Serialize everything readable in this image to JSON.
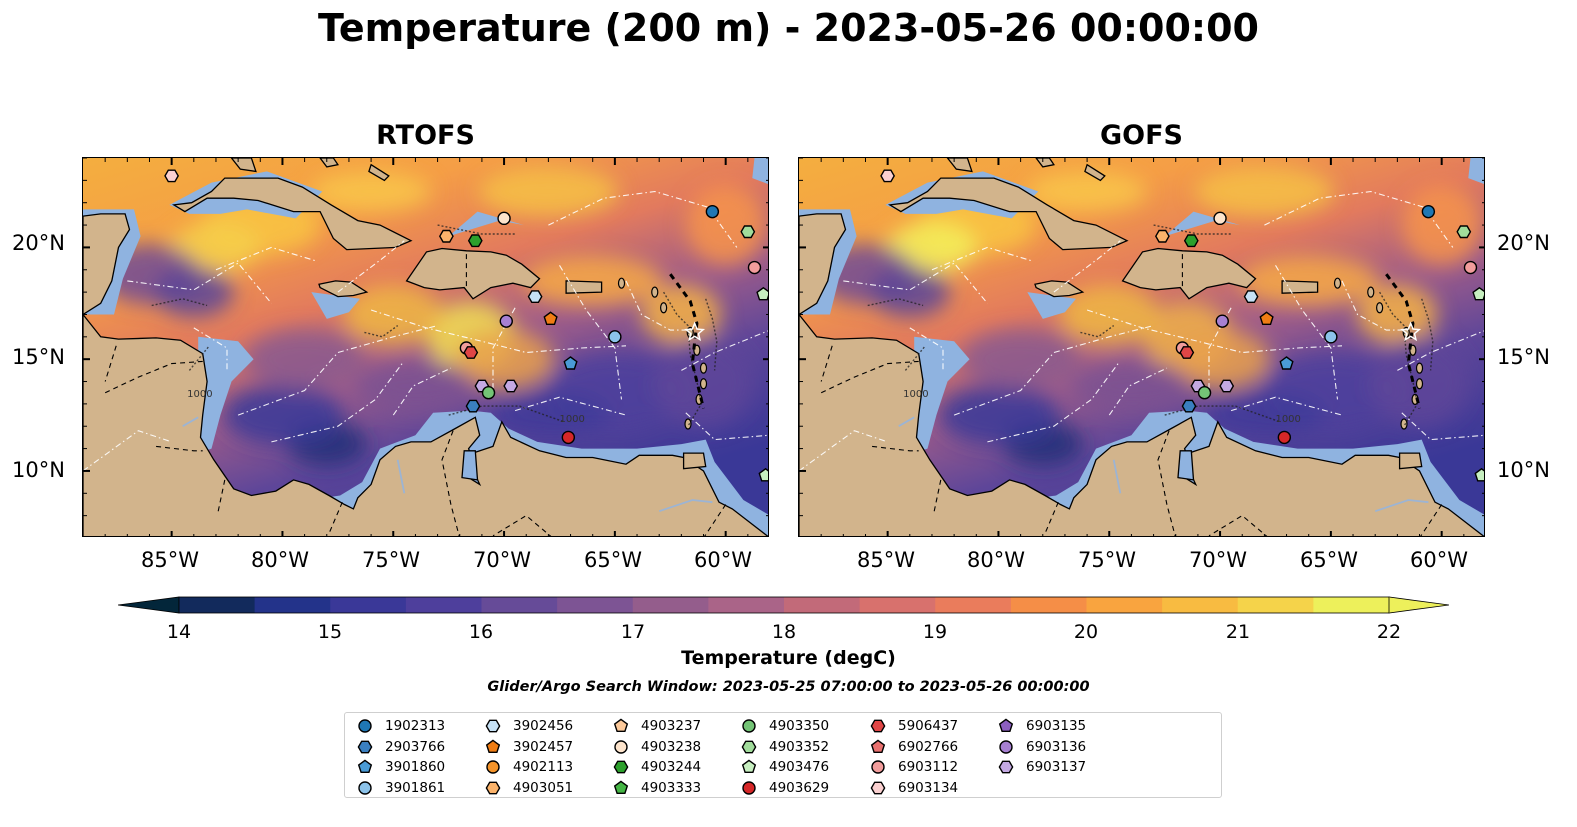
{
  "title": "Temperature (200 m) - 2023-05-26 00:00:00",
  "panels": [
    {
      "title": "RTOFS"
    },
    {
      "title": "GOFS"
    }
  ],
  "axes": {
    "lon_ticks": [
      "85°W",
      "80°W",
      "75°W",
      "70°W",
      "65°W",
      "60°W"
    ],
    "lat_ticks": [
      "20°N",
      "15°N",
      "10°N"
    ]
  },
  "contour_labels": [
    "1000",
    "1000"
  ],
  "colorbar": {
    "label": "Temperature (degC)",
    "min": 14,
    "max": 22,
    "ticks": [
      "14",
      "15",
      "16",
      "17",
      "18",
      "19",
      "20",
      "21",
      "22"
    ],
    "colormap": [
      "#03263a",
      "#122a5c",
      "#23338a",
      "#3a3898",
      "#4e3f9c",
      "#664b98",
      "#7d5494",
      "#945d8c",
      "#aa6488",
      "#c26a79",
      "#d8716d",
      "#ea7c5c",
      "#f58e47",
      "#f9a43f",
      "#f8bb41",
      "#f5d34a",
      "#edf05b"
    ]
  },
  "search_window": "Glider/Argo Search Window: 2023-05-25 07:00:00 to 2023-05-26 00:00:00",
  "legend": [
    {
      "label": "1902313",
      "marker": "circle",
      "color": "#1f77b4"
    },
    {
      "label": "2903766",
      "marker": "hexagon",
      "color": "#3a7fc0"
    },
    {
      "label": "3901860",
      "marker": "pentagon",
      "color": "#4a9bd6"
    },
    {
      "label": "3901861",
      "marker": "circle",
      "color": "#8cc3ea"
    },
    {
      "label": "3902456",
      "marker": "hexagon",
      "color": "#c6e1f5"
    },
    {
      "label": "3902457",
      "marker": "pentagon",
      "color": "#f07d14"
    },
    {
      "label": "4902113",
      "marker": "circle",
      "color": "#f5942a"
    },
    {
      "label": "4903051",
      "marker": "hexagon",
      "color": "#fbb36b"
    },
    {
      "label": "4903237",
      "marker": "pentagon",
      "color": "#fcc99a"
    },
    {
      "label": "4903238",
      "marker": "circle",
      "color": "#fde4cc"
    },
    {
      "label": "4903244",
      "marker": "hexagon",
      "color": "#2ca02c"
    },
    {
      "label": "4903333",
      "marker": "pentagon",
      "color": "#45b545"
    },
    {
      "label": "4903350",
      "marker": "circle",
      "color": "#74c476"
    },
    {
      "label": "4903352",
      "marker": "hexagon",
      "color": "#a1dc9b"
    },
    {
      "label": "4903476",
      "marker": "pentagon",
      "color": "#c7efc0"
    },
    {
      "label": "4903629",
      "marker": "circle",
      "color": "#d62728"
    },
    {
      "label": "5906437",
      "marker": "hexagon",
      "color": "#e04646"
    },
    {
      "label": "6902766",
      "marker": "pentagon",
      "color": "#e9716f"
    },
    {
      "label": "6903112",
      "marker": "circle",
      "color": "#f29d9c"
    },
    {
      "label": "6903134",
      "marker": "hexagon",
      "color": "#fad0d0"
    },
    {
      "label": "6903135",
      "marker": "pentagon",
      "color": "#8c5fc0"
    },
    {
      "label": "6903136",
      "marker": "circle",
      "color": "#a780d2"
    },
    {
      "label": "6903137",
      "marker": "hexagon",
      "color": "#c4a9e3"
    }
  ],
  "floats": [
    {
      "id": "6903134",
      "lon": -85.0,
      "lat": 23.2
    },
    {
      "id": "1902313",
      "lon": -60.6,
      "lat": 21.6
    },
    {
      "id": "4903352",
      "lon": -59.0,
      "lat": 20.7
    },
    {
      "id": "4903238",
      "lon": -70.0,
      "lat": 21.3
    },
    {
      "id": "4903051",
      "lon": -72.6,
      "lat": 20.5
    },
    {
      "id": "4903244",
      "lon": -71.3,
      "lat": 20.3
    },
    {
      "id": "6903112",
      "lon": -58.7,
      "lat": 19.1
    },
    {
      "id": "4903476",
      "lon": -58.3,
      "lat": 17.9
    },
    {
      "id": "3902456",
      "lon": -68.6,
      "lat": 17.8
    },
    {
      "id": "6903136",
      "lon": -69.9,
      "lat": 16.7
    },
    {
      "id": "3902457",
      "lon": -67.9,
      "lat": 16.8
    },
    {
      "id": "3901861",
      "lon": -65.0,
      "lat": 16.0
    },
    {
      "id": "6903112",
      "lon": -71.7,
      "lat": 15.5
    },
    {
      "id": "5906437",
      "lon": -71.5,
      "lat": 15.3
    },
    {
      "id": "3901860",
      "lon": -67.0,
      "lat": 14.8
    },
    {
      "id": "6903137",
      "lon": -71.0,
      "lat": 13.8
    },
    {
      "id": "6903137",
      "lon": -69.7,
      "lat": 13.8
    },
    {
      "id": "4903350",
      "lon": -70.7,
      "lat": 13.5
    },
    {
      "id": "2903766",
      "lon": -71.4,
      "lat": 12.9
    },
    {
      "id": "4903629",
      "lon": -67.1,
      "lat": 11.5
    },
    {
      "id": "4903476",
      "lon": -58.2,
      "lat": 9.8
    }
  ]
}
